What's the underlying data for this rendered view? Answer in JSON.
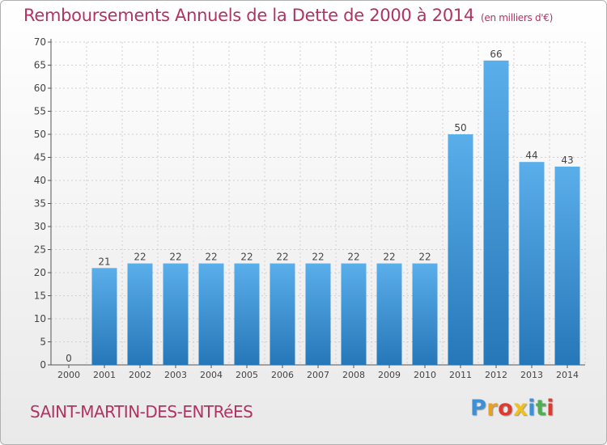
{
  "header": {
    "title": "Remboursements Annuels de la Dette de 2000 à 2014",
    "unit": "(en milliers d'€)"
  },
  "footer": {
    "commune": "SAINT-MARTIN-DES-ENTRéES",
    "logo_letters": [
      "P",
      "r",
      "o",
      "x",
      "i",
      "t",
      "i"
    ],
    "logo_colors": [
      "#3d8fd6",
      "#e8a020",
      "#e03a2f",
      "#f0c020",
      "#3d8fd6",
      "#4caf50",
      "#e03a2f"
    ]
  },
  "chart_data": {
    "type": "bar",
    "title": "Remboursements Annuels de la Dette de 2000 à 2014",
    "categories": [
      "2000",
      "2001",
      "2002",
      "2003",
      "2004",
      "2005",
      "2006",
      "2007",
      "2008",
      "2009",
      "2010",
      "2011",
      "2012",
      "2013",
      "2014"
    ],
    "values": [
      0,
      21,
      22,
      22,
      22,
      22,
      22,
      22,
      22,
      22,
      22,
      50,
      66,
      44,
      43
    ],
    "data_labels": [
      "0",
      "21",
      "22",
      "22",
      "22",
      "22",
      "22",
      "22",
      "22",
      "22",
      "22",
      "50",
      "66",
      "44",
      "43"
    ],
    "ylim": [
      0,
      70
    ],
    "yticks": [
      0,
      5,
      10,
      15,
      20,
      25,
      30,
      35,
      40,
      45,
      50,
      55,
      60,
      65,
      70
    ],
    "grid": true,
    "bar_color_light": "#5aaeea",
    "bar_color_dark": "#2677b8"
  }
}
